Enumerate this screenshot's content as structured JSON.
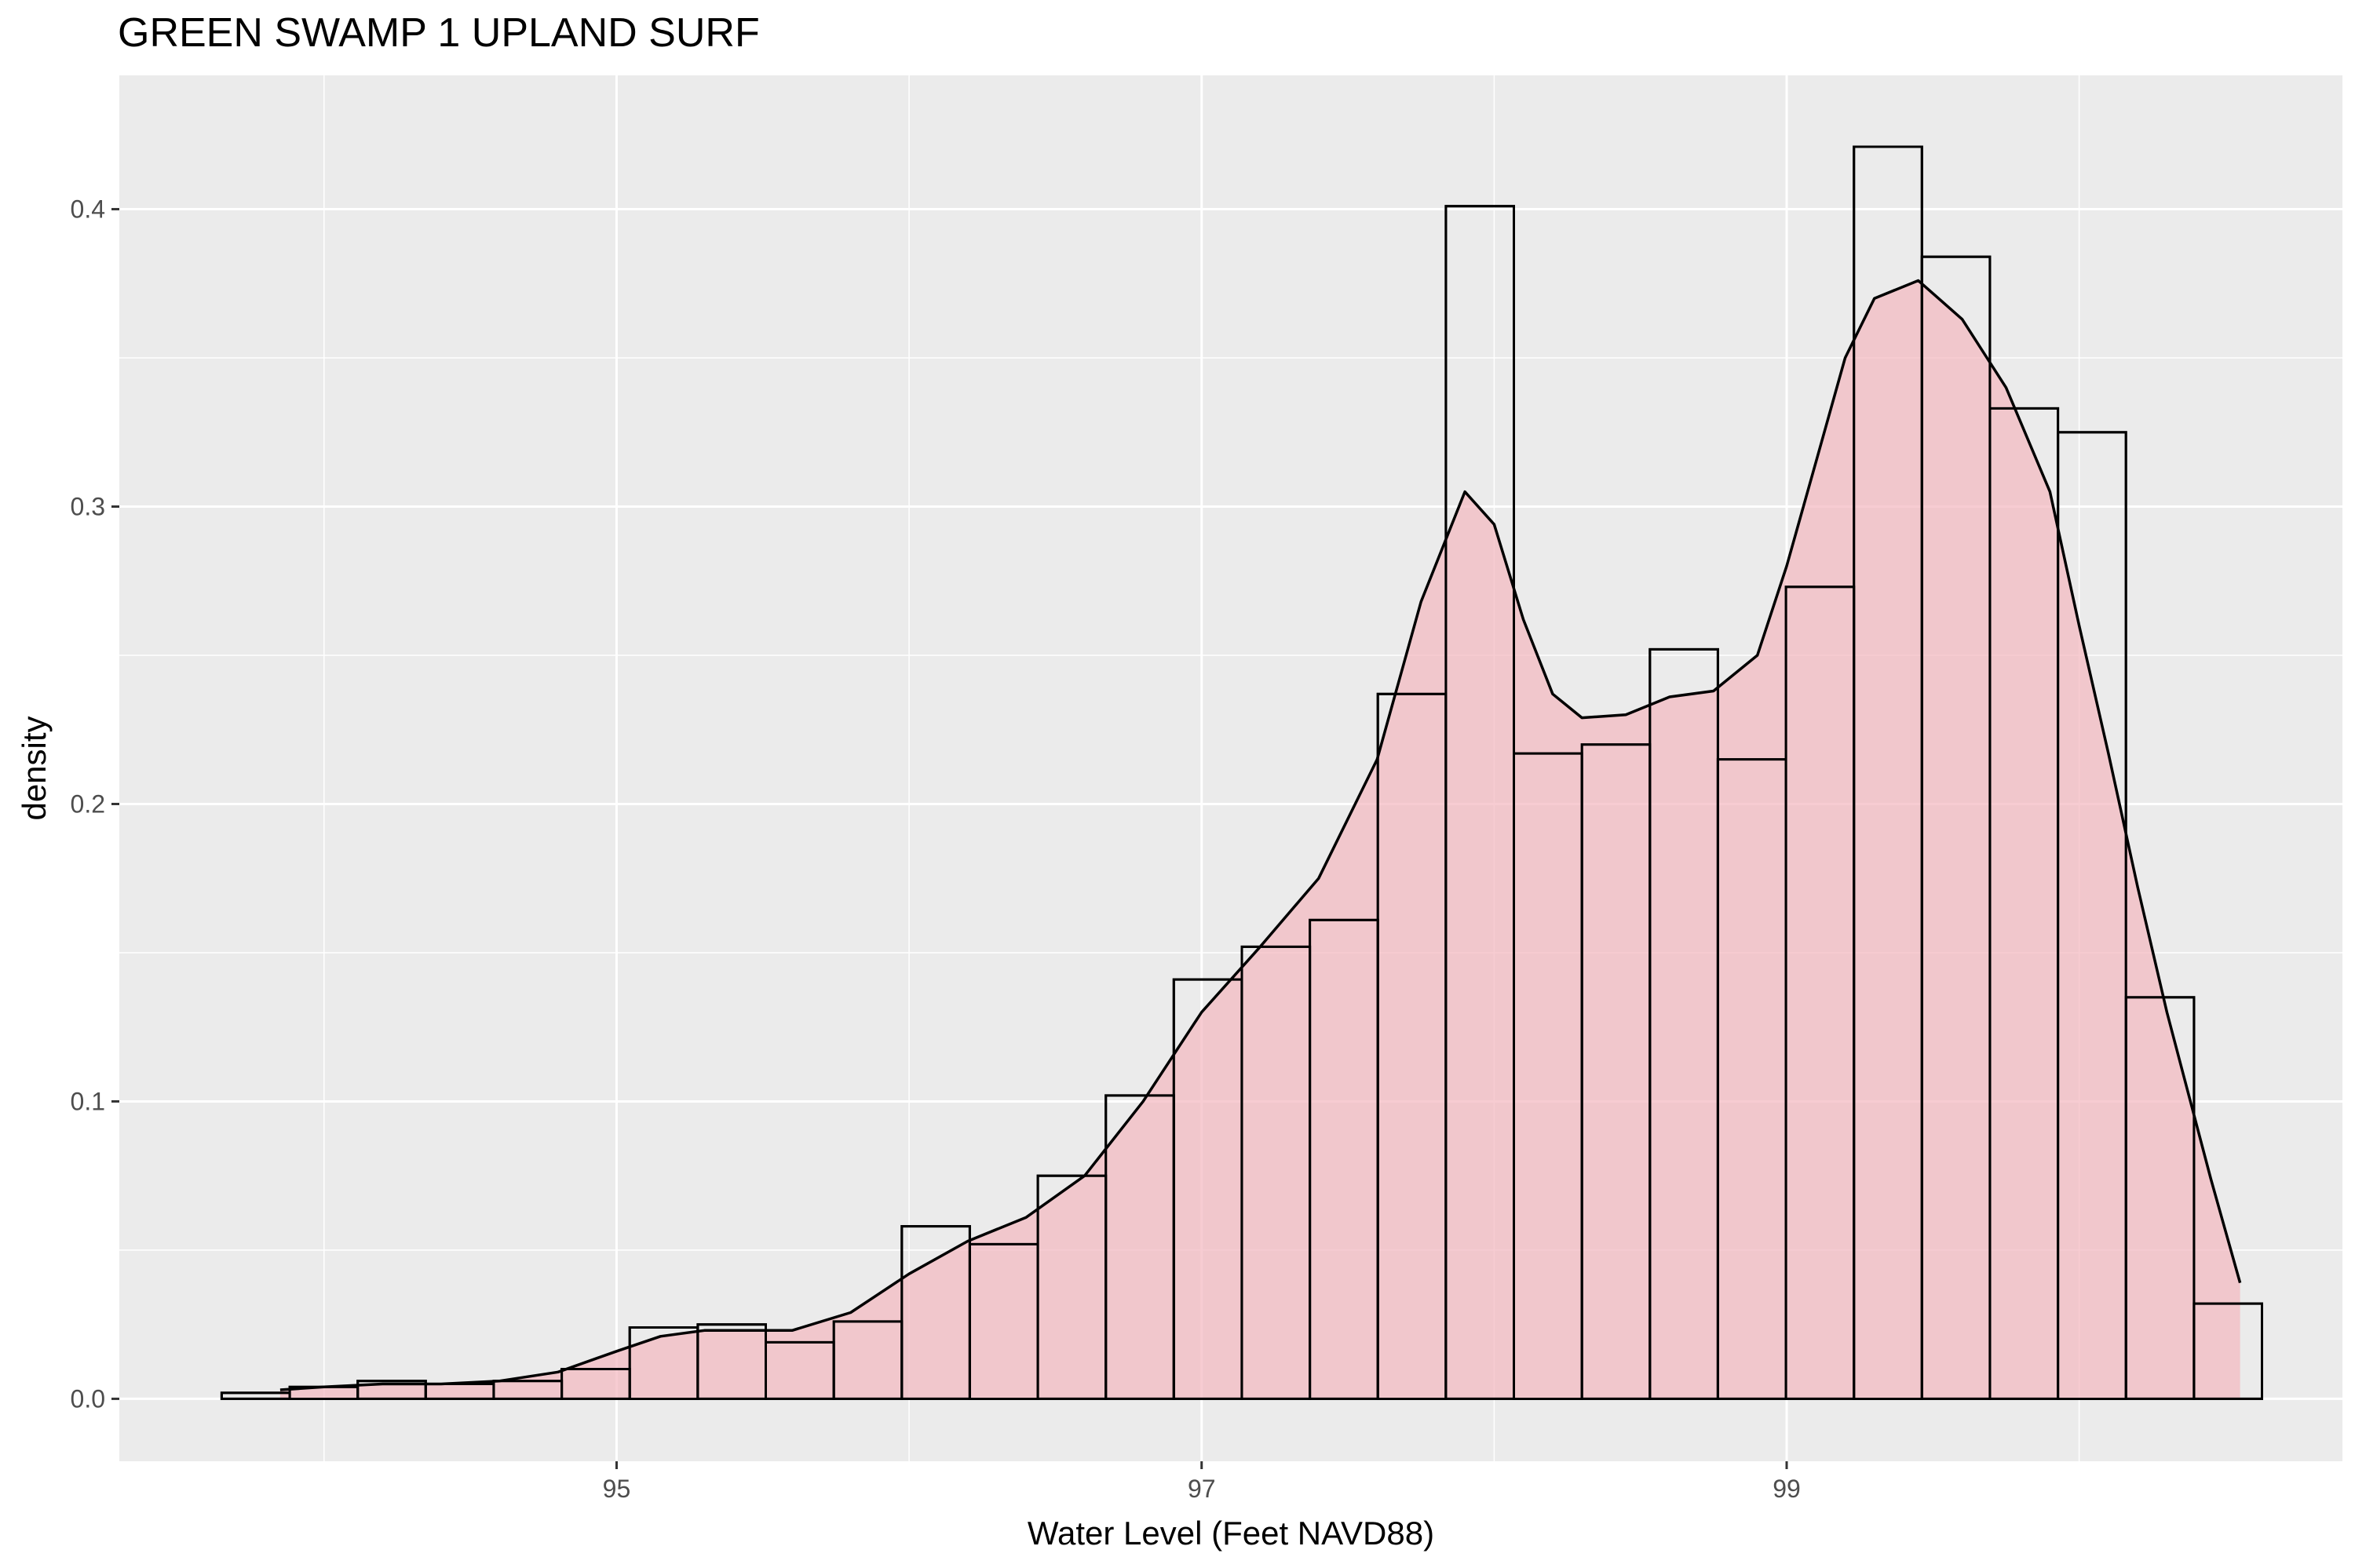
{
  "chart_data": {
    "type": "bar",
    "title": "GREEN SWAMP 1 UPLAND SURF",
    "xlabel": "Water Level (Feet NAVD88)",
    "ylabel": "density",
    "xlim": [
      93.3,
      100.9
    ],
    "ylim": [
      -0.021,
      0.445
    ],
    "x_ticks": [
      95,
      97,
      99
    ],
    "x_tick_labels": [
      "95",
      "97",
      "99"
    ],
    "y_ticks": [
      0.0,
      0.1,
      0.2,
      0.3,
      0.4
    ],
    "y_tick_labels": [
      "0.0",
      "0.1",
      "0.2",
      "0.3",
      "0.4"
    ],
    "x_minor_ticks": [
      94,
      96,
      98,
      100
    ],
    "y_minor_ticks": [
      0.05,
      0.15,
      0.25,
      0.35
    ],
    "grid": true,
    "background": "#ebebeb",
    "grid_color": "#ffffff",
    "density_fill": "#f4b8bf",
    "bar_fill": "#ffffff",
    "bar_outline": "#000000",
    "histogram": {
      "bin_width": 0.2325,
      "bin_start": 93.65,
      "counts_density": [
        0.002,
        0.004,
        0.006,
        0.005,
        0.006,
        0.01,
        0.024,
        0.025,
        0.019,
        0.026,
        0.058,
        0.052,
        0.075,
        0.102,
        0.141,
        0.152,
        0.161,
        0.237,
        0.401,
        0.217,
        0.22,
        0.252,
        0.215,
        0.273,
        0.421,
        0.384,
        0.333,
        0.325,
        0.135,
        0.032
      ]
    },
    "density_curve": {
      "x": [
        93.85,
        94.0,
        94.2,
        94.4,
        94.6,
        94.8,
        95.0,
        95.15,
        95.3,
        95.45,
        95.6,
        95.8,
        96.0,
        96.2,
        96.4,
        96.6,
        96.8,
        97.0,
        97.2,
        97.4,
        97.6,
        97.75,
        97.9,
        98.0,
        98.1,
        98.2,
        98.3,
        98.45,
        98.6,
        98.75,
        98.9,
        99.0,
        99.1,
        99.2,
        99.3,
        99.45,
        99.6,
        99.75,
        99.9,
        100.0,
        100.1,
        100.2,
        100.3,
        100.45,
        100.55
      ],
      "y": [
        0.003,
        0.004,
        0.005,
        0.005,
        0.006,
        0.009,
        0.016,
        0.021,
        0.023,
        0.023,
        0.023,
        0.029,
        0.042,
        0.053,
        0.061,
        0.075,
        0.1,
        0.13,
        0.152,
        0.175,
        0.215,
        0.268,
        0.305,
        0.294,
        0.262,
        0.237,
        0.229,
        0.23,
        0.236,
        0.238,
        0.25,
        0.28,
        0.315,
        0.35,
        0.37,
        0.376,
        0.363,
        0.34,
        0.305,
        0.26,
        0.217,
        0.172,
        0.13,
        0.074,
        0.039
      ]
    }
  }
}
